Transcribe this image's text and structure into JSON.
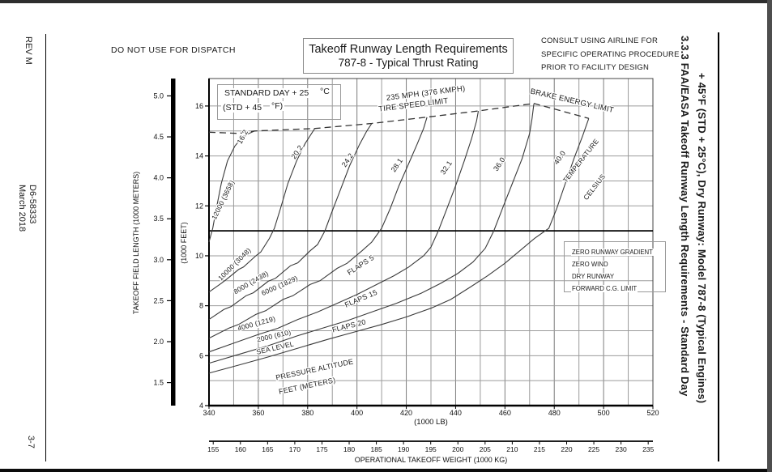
{
  "page": {
    "left_margin": {
      "rev": "REV M",
      "doc_number": "D6-58333",
      "date": "March 2018",
      "page_number": "3-7"
    },
    "right_margin": {
      "line1": "3.3.3    FAA/EASA Takeoff Runway Length Requirements - Standard Day",
      "line2": "+ 45°F (STD + 25°C), Dry Runway: Model 787-8 (Typical Engines)"
    },
    "header": {
      "dispatch_note": "DO NOT USE FOR DISPATCH",
      "title_line1": "Takeoff Runway Length Requirements",
      "title_line2": "787-8 - Typical Thrust Rating",
      "consult_note": [
        "CONSULT USING AIRLINE FOR",
        "SPECIFIC OPERATING PROCEDURE",
        "PRIOR TO FACILITY DESIGN"
      ]
    }
  },
  "chart_data": {
    "type": "line",
    "title": "Takeoff Runway Length Requirements - 787-8 Typical Thrust Rating",
    "x_axis": {
      "label": "(1000 LB)",
      "range": [
        340,
        520
      ],
      "ticks": [
        340,
        360,
        380,
        400,
        420,
        440,
        460,
        480,
        500,
        520
      ],
      "gridline_step": 10
    },
    "x_axis_secondary": {
      "label": "OPERATIONAL TAKEOFF WEIGHT (1000 KG)",
      "ticks": [
        155,
        160,
        165,
        170,
        175,
        180,
        185,
        190,
        195,
        200,
        205,
        210,
        215,
        220,
        225,
        230,
        235
      ],
      "lb_per_kg": 2.20462
    },
    "y_axis_feet": {
      "label": "(1000 FEET)",
      "range": [
        4,
        17.1
      ],
      "ticks": [
        16,
        14,
        12,
        10,
        8,
        6,
        4
      ],
      "gridline_step": 1
    },
    "y_axis_meters": {
      "label": "TAKEOFF FIELD LENGTH (1000 METERS)",
      "ticks": [
        5.0,
        4.5,
        4.0,
        3.5,
        3.0,
        2.5,
        2.0,
        1.5
      ],
      "feet_per_meter": 3.28084
    },
    "reference_line_feet": 11,
    "condition_box": {
      "line1": [
        "STANDARD DAY + 25",
        "°C"
      ],
      "line2": [
        "(STD + 45",
        "°F)"
      ]
    },
    "legend": [
      "ZERO RUNWAY GRADIENT",
      "ZERO WIND",
      "DRY RUNWAY",
      "FORWARD C.G. LIMIT"
    ],
    "limit_line": {
      "name": "tire speed / brake energy limit",
      "points": [
        [
          340,
          14.95
        ],
        [
          352,
          14.9
        ],
        [
          358.5,
          15.0
        ],
        [
          383,
          15.1
        ],
        [
          406,
          15.3
        ],
        [
          428,
          15.55
        ],
        [
          449,
          15.8
        ],
        [
          471.7,
          16.1
        ],
        [
          483,
          15.8
        ],
        [
          494,
          15.5
        ]
      ]
    },
    "series": [
      {
        "name": "12000 ft (3658 m) / 16.2 C",
        "points": [
          [
            340,
            10.55
          ],
          [
            341.5,
            11.1
          ],
          [
            343,
            11.9
          ],
          [
            345,
            12.9
          ],
          [
            347.5,
            13.8
          ],
          [
            350.5,
            14.4
          ],
          [
            354,
            14.8
          ],
          [
            358.5,
            15.0
          ]
        ]
      },
      {
        "name": "10000 ft (3048 m) / 20.2 C",
        "points": [
          [
            340,
            8.55
          ],
          [
            345,
            8.9
          ],
          [
            347,
            9.05
          ],
          [
            352,
            9.45
          ],
          [
            354,
            9.55
          ],
          [
            359,
            10.0
          ],
          [
            361,
            10.15
          ],
          [
            364.5,
            10.7
          ],
          [
            366.5,
            11.1
          ],
          [
            369,
            11.9
          ],
          [
            372,
            12.9
          ],
          [
            375.5,
            13.8
          ],
          [
            379,
            14.5
          ],
          [
            382.9,
            15.1
          ]
        ]
      },
      {
        "name": "8000 ft (2438 m) / 24.2 C",
        "points": [
          [
            340,
            7.45
          ],
          [
            346,
            7.85
          ],
          [
            349,
            7.97
          ],
          [
            355,
            8.4
          ],
          [
            358,
            8.52
          ],
          [
            364,
            8.98
          ],
          [
            367,
            9.1
          ],
          [
            373,
            9.6
          ],
          [
            376,
            9.72
          ],
          [
            381,
            10.2
          ],
          [
            384,
            10.45
          ],
          [
            387,
            11.0
          ],
          [
            390,
            11.8
          ],
          [
            393.5,
            12.7
          ],
          [
            397,
            13.6
          ],
          [
            401,
            14.45
          ],
          [
            404,
            15.0
          ],
          [
            406,
            15.3
          ]
        ]
      },
      {
        "name": "6000 ft (1829 m) / 28.1 C",
        "points": [
          [
            340,
            6.7
          ],
          [
            348,
            7.1
          ],
          [
            352,
            7.25
          ],
          [
            359,
            7.65
          ],
          [
            363,
            7.8
          ],
          [
            370,
            8.25
          ],
          [
            374,
            8.4
          ],
          [
            381,
            8.85
          ],
          [
            385,
            9.0
          ],
          [
            392,
            9.5
          ],
          [
            396,
            9.7
          ],
          [
            402,
            10.2
          ],
          [
            406,
            10.55
          ],
          [
            410,
            11.1
          ],
          [
            413.5,
            11.9
          ],
          [
            417,
            12.8
          ],
          [
            421,
            13.7
          ],
          [
            424.5,
            14.5
          ],
          [
            427,
            15.1
          ],
          [
            428.4,
            15.55
          ]
        ]
      },
      {
        "name": "4000 ft (1219 m) / 32.1 C",
        "points": [
          [
            340,
            6.15
          ],
          [
            350,
            6.5
          ],
          [
            360,
            6.85
          ],
          [
            368,
            7.1
          ],
          [
            376,
            7.45
          ],
          [
            384,
            7.75
          ],
          [
            392,
            8.1
          ],
          [
            400,
            8.45
          ],
          [
            408,
            8.85
          ],
          [
            415,
            9.2
          ],
          [
            421,
            9.55
          ],
          [
            427,
            10.0
          ],
          [
            430,
            10.35
          ],
          [
            433,
            11.0
          ],
          [
            436.5,
            11.9
          ],
          [
            440,
            12.8
          ],
          [
            443.5,
            13.8
          ],
          [
            446.5,
            14.7
          ],
          [
            448.5,
            15.4
          ],
          [
            449.2,
            15.8
          ]
        ]
      },
      {
        "name": "2000 ft (610 m) / 36.0 C",
        "points": [
          [
            340,
            5.7
          ],
          [
            352,
            6.05
          ],
          [
            364,
            6.4
          ],
          [
            376,
            6.8
          ],
          [
            386,
            7.1
          ],
          [
            396,
            7.4
          ],
          [
            406,
            7.75
          ],
          [
            416,
            8.1
          ],
          [
            426,
            8.5
          ],
          [
            434,
            8.9
          ],
          [
            441,
            9.3
          ],
          [
            447,
            9.75
          ],
          [
            452,
            10.3
          ],
          [
            455.5,
            11.0
          ],
          [
            459,
            11.9
          ],
          [
            463,
            12.9
          ],
          [
            467,
            13.9
          ],
          [
            470,
            14.9
          ],
          [
            471,
            15.5
          ],
          [
            471.7,
            16.08
          ]
        ]
      },
      {
        "name": "sea level / 40.0 C",
        "points": [
          [
            340,
            5.3
          ],
          [
            352,
            5.62
          ],
          [
            364,
            5.95
          ],
          [
            376,
            6.3
          ],
          [
            388,
            6.65
          ],
          [
            398,
            6.92
          ],
          [
            410,
            7.25
          ],
          [
            420,
            7.55
          ],
          [
            430,
            7.9
          ],
          [
            438,
            8.25
          ],
          [
            446,
            8.75
          ],
          [
            453,
            9.2
          ],
          [
            460,
            9.7
          ],
          [
            466,
            10.2
          ],
          [
            472,
            10.7
          ],
          [
            477.8,
            11.1
          ],
          [
            481,
            11.9
          ],
          [
            484.5,
            12.9
          ],
          [
            488,
            13.9
          ],
          [
            491.5,
            14.8
          ],
          [
            494,
            15.5
          ]
        ]
      }
    ],
    "labels": [
      {
        "text": "235 MPH (376 KMPH)",
        "x": 428,
        "y": 16.42,
        "rot": -7,
        "size": 9.5
      },
      {
        "text": "TIRE SPEED LIMIT",
        "x": 423,
        "y": 15.95,
        "rot": -7,
        "size": 9.5
      },
      {
        "text": "BRAKE ENERGY LIMIT",
        "x": 487,
        "y": 16.12,
        "rot": 13,
        "size": 9.5
      },
      {
        "text": "16.2",
        "x": 354.5,
        "y": 14.72,
        "rot": -62,
        "size": 9
      },
      {
        "text": "20.2",
        "x": 376.5,
        "y": 14.1,
        "rot": -56,
        "size": 9
      },
      {
        "text": "24.2",
        "x": 397,
        "y": 13.78,
        "rot": -56,
        "size": 9
      },
      {
        "text": "28.1",
        "x": 417,
        "y": 13.58,
        "rot": -56,
        "size": 9
      },
      {
        "text": "32.1",
        "x": 437,
        "y": 13.48,
        "rot": -56,
        "size": 9
      },
      {
        "text": "36.0",
        "x": 458.5,
        "y": 13.62,
        "rot": -56,
        "size": 9
      },
      {
        "text": "40.0",
        "x": 483,
        "y": 13.88,
        "rot": -56,
        "size": 9
      },
      {
        "text": "TEMPERATURE",
        "x": 491.5,
        "y": 13.75,
        "rot": -52,
        "size": 8.5
      },
      {
        "text": "CELSIUS",
        "x": 497,
        "y": 12.7,
        "rot": -52,
        "size": 8.5
      },
      {
        "text": "12000 (3658)",
        "x": 346.5,
        "y": 12.2,
        "rot": -64,
        "size": 8.5
      },
      {
        "text": "10000 (3048)",
        "x": 351,
        "y": 9.6,
        "rot": -45,
        "size": 8.5
      },
      {
        "text": "8000 (2438)",
        "x": 357.5,
        "y": 8.85,
        "rot": -30,
        "size": 8.5
      },
      {
        "text": "6000  (1829)",
        "x": 369,
        "y": 8.72,
        "rot": -24,
        "size": 8.5
      },
      {
        "text": "4000  (1219)",
        "x": 359.5,
        "y": 7.2,
        "rot": -15,
        "size": 8.5
      },
      {
        "text": "2000  (610)",
        "x": 366.5,
        "y": 6.7,
        "rot": -13,
        "size": 8.5
      },
      {
        "text": "SEA LEVEL",
        "x": 367,
        "y": 6.22,
        "rot": -13,
        "size": 8.5
      },
      {
        "text": "PRESSURE ALTITUDE",
        "x": 383,
        "y": 5.35,
        "rot": -12,
        "size": 9
      },
      {
        "text": "FEET  (METERS)",
        "x": 380,
        "y": 4.7,
        "rot": -12,
        "size": 9
      },
      {
        "text": "FLAPS 5",
        "x": 402,
        "y": 9.55,
        "rot": -33,
        "size": 9
      },
      {
        "text": "FLAPS 15",
        "x": 402,
        "y": 8.2,
        "rot": -23,
        "size": 9
      },
      {
        "text": "FLAPS 20",
        "x": 397,
        "y": 7.1,
        "rot": -14,
        "size": 9
      }
    ]
  }
}
